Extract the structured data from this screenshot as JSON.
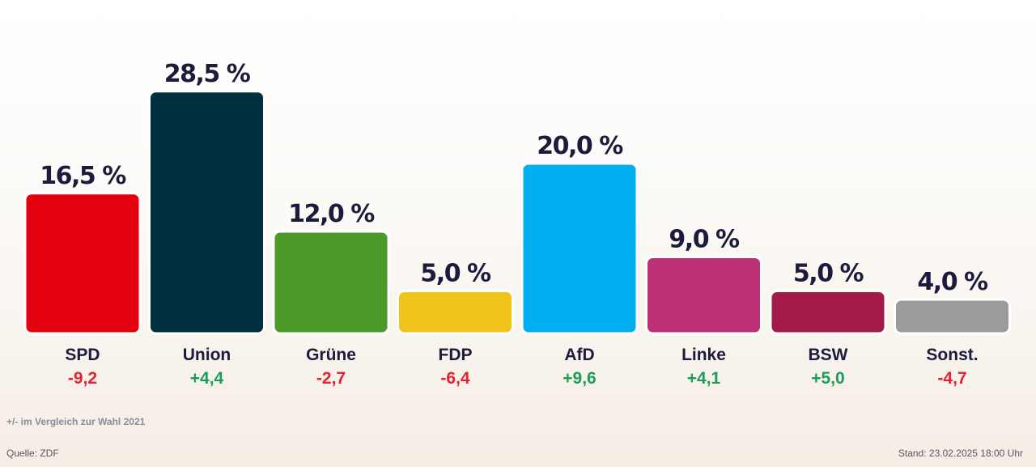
{
  "chart_data": {
    "type": "bar",
    "categories": [
      "SPD",
      "Union",
      "Grüne",
      "FDP",
      "AfD",
      "Linke",
      "BSW",
      "Sonst."
    ],
    "values": [
      16.5,
      28.5,
      12.0,
      5.0,
      20.0,
      9.0,
      5.0,
      4.0
    ],
    "value_labels": [
      "16,5 %",
      "28,5 %",
      "12,0 %",
      "5,0 %",
      "20,0 %",
      "9,0 %",
      "5,0 %",
      "4,0 %"
    ],
    "changes": [
      -9.2,
      4.4,
      -2.7,
      -6.4,
      9.6,
      4.1,
      5.0,
      -4.7
    ],
    "change_labels": [
      "-9,2",
      "+4,4",
      "-2,7",
      "-6,4",
      "+9,6",
      "+4,1",
      "+5,0",
      "-4,7"
    ],
    "colors": [
      "#e3000f",
      "#00303f",
      "#4c9a2a",
      "#f0c419",
      "#00aff0",
      "#be3075",
      "#a11a48",
      "#9b9b9b"
    ],
    "positive_color": "#1a9e55",
    "negative_color": "#e5222e",
    "ylim": [
      0,
      30
    ],
    "grid": false,
    "legend": "none"
  },
  "footer": {
    "note": "+/- im Vergleich zur Wahl 2021",
    "source": "Quelle: ZDF",
    "stand": "Stand: 23.02.2025 18:00 Uhr"
  }
}
